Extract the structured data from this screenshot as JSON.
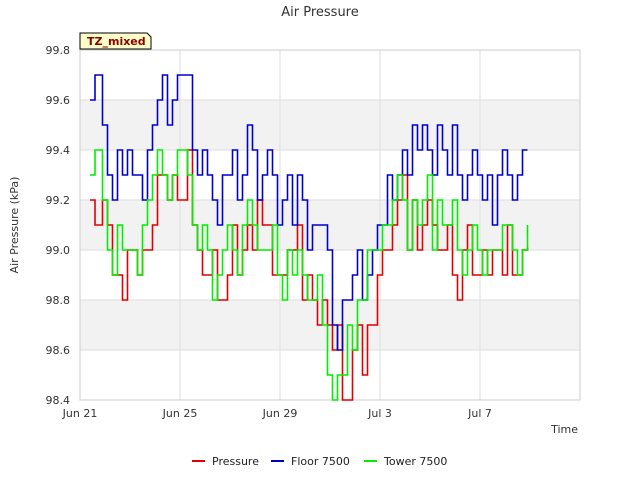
{
  "chart_data": {
    "type": "line",
    "title": "Air Pressure",
    "xlabel": "Time",
    "ylabel": "Air Pressure (kPa)",
    "badge": "TZ_mixed",
    "ylim": [
      98.4,
      99.8
    ],
    "yticks": [
      "98.4",
      "98.6",
      "98.8",
      "99.0",
      "99.2",
      "99.4",
      "99.6",
      "99.8"
    ],
    "xlim": [
      0,
      20
    ],
    "xticks": [
      {
        "label": "Jun 21",
        "day": 0
      },
      {
        "label": "Jun 25",
        "day": 4
      },
      {
        "label": "Jun 29",
        "day": 8
      },
      {
        "label": "Jul 3",
        "day": 12
      },
      {
        "label": "Jul 7",
        "day": 16
      }
    ],
    "grid": true,
    "legend_position": "bottom",
    "series": [
      {
        "name": "Pressure",
        "color": "#e00000",
        "x": [
          0.4,
          0.6,
          0.9,
          1.1,
          1.3,
          1.5,
          1.7,
          1.9,
          2.1,
          2.3,
          2.5,
          2.7,
          2.9,
          3.1,
          3.3,
          3.5,
          3.7,
          3.9,
          4.1,
          4.3,
          4.5,
          4.7,
          4.9,
          5.1,
          5.3,
          5.5,
          5.7,
          5.9,
          6.1,
          6.3,
          6.5,
          6.7,
          6.9,
          7.1,
          7.3,
          7.5,
          7.7,
          7.9,
          8.1,
          8.3,
          8.5,
          8.7,
          8.9,
          9.1,
          9.3,
          9.5,
          9.7,
          9.9,
          10.1,
          10.3,
          10.5,
          10.7,
          10.9,
          11.1,
          11.3,
          11.5,
          11.7,
          11.9,
          12.1,
          12.3,
          12.5,
          12.7,
          12.9,
          13.1,
          13.3,
          13.5,
          13.7,
          13.9,
          14.1,
          14.3,
          14.5,
          14.7,
          14.9,
          15.1,
          15.3,
          15.5,
          15.7,
          15.9,
          16.1,
          16.3,
          16.5,
          16.7,
          16.9,
          17.1,
          17.3,
          17.5,
          17.7,
          17.9
        ],
        "y": [
          99.2,
          99.1,
          99.2,
          99.1,
          98.9,
          98.9,
          98.8,
          99.0,
          99.0,
          98.9,
          99.0,
          99.0,
          99.1,
          99.3,
          99.3,
          99.2,
          99.3,
          99.2,
          99.2,
          99.4,
          99.1,
          99.0,
          98.9,
          98.9,
          99.0,
          98.8,
          98.8,
          98.9,
          99.1,
          98.9,
          99.0,
          99.1,
          99.0,
          99.2,
          99.1,
          99.1,
          98.9,
          98.9,
          98.9,
          99.0,
          99.0,
          99.1,
          98.8,
          98.9,
          98.8,
          98.7,
          98.8,
          98.7,
          98.6,
          98.7,
          98.4,
          98.4,
          98.6,
          98.7,
          98.5,
          98.7,
          98.7,
          98.9,
          99.0,
          99.0,
          99.1,
          99.2,
          99.3,
          99.0,
          99.2,
          99.0,
          99.1,
          99.2,
          99.1,
          99.0,
          99.0,
          99.1,
          98.9,
          98.8,
          99.0,
          99.1,
          98.9,
          98.9,
          99.0,
          98.9,
          99.0,
          99.0,
          98.9,
          99.1,
          98.9,
          98.9,
          99.0,
          99.01
        ]
      },
      {
        "name": "Floor 7500",
        "color": "#0000cc",
        "x": [
          0.4,
          0.6,
          0.9,
          1.1,
          1.3,
          1.5,
          1.7,
          1.9,
          2.1,
          2.3,
          2.5,
          2.7,
          2.9,
          3.1,
          3.3,
          3.5,
          3.7,
          3.9,
          4.1,
          4.3,
          4.5,
          4.7,
          4.9,
          5.1,
          5.3,
          5.5,
          5.7,
          5.9,
          6.1,
          6.3,
          6.5,
          6.7,
          6.9,
          7.1,
          7.3,
          7.5,
          7.7,
          7.9,
          8.1,
          8.3,
          8.5,
          8.7,
          8.9,
          9.1,
          9.3,
          9.5,
          9.7,
          9.9,
          10.1,
          10.3,
          10.5,
          10.7,
          10.9,
          11.1,
          11.3,
          11.5,
          11.7,
          11.9,
          12.1,
          12.3,
          12.5,
          12.7,
          12.9,
          13.1,
          13.3,
          13.5,
          13.7,
          13.9,
          14.1,
          14.3,
          14.5,
          14.7,
          14.9,
          15.1,
          15.3,
          15.5,
          15.7,
          15.9,
          16.1,
          16.3,
          16.5,
          16.7,
          16.9,
          17.1,
          17.3,
          17.5,
          17.7,
          17.9
        ],
        "y": [
          99.6,
          99.7,
          99.5,
          99.3,
          99.2,
          99.4,
          99.3,
          99.4,
          99.3,
          99.3,
          99.2,
          99.4,
          99.5,
          99.6,
          99.7,
          99.5,
          99.6,
          99.7,
          99.7,
          99.7,
          99.4,
          99.3,
          99.4,
          99.3,
          99.2,
          99.1,
          99.3,
          99.3,
          99.4,
          99.2,
          99.3,
          99.5,
          99.4,
          99.2,
          99.3,
          99.4,
          99.3,
          99.1,
          99.2,
          99.3,
          99.1,
          99.3,
          99.2,
          99.0,
          99.1,
          99.1,
          99.1,
          99.0,
          98.7,
          98.6,
          98.8,
          98.8,
          98.9,
          99.0,
          98.8,
          98.9,
          99.0,
          99.1,
          99.1,
          99.3,
          99.2,
          99.3,
          99.4,
          99.3,
          99.5,
          99.4,
          99.5,
          99.4,
          99.3,
          99.5,
          99.4,
          99.3,
          99.5,
          99.3,
          99.2,
          99.3,
          99.4,
          99.3,
          99.2,
          99.3,
          99.1,
          99.3,
          99.4,
          99.3,
          99.2,
          99.3,
          99.4,
          99.4
        ]
      },
      {
        "name": "Tower 7500",
        "color": "#00ee00",
        "x": [
          0.4,
          0.6,
          0.9,
          1.1,
          1.3,
          1.5,
          1.7,
          1.9,
          2.1,
          2.3,
          2.5,
          2.7,
          2.9,
          3.1,
          3.3,
          3.5,
          3.7,
          3.9,
          4.1,
          4.3,
          4.5,
          4.7,
          4.9,
          5.1,
          5.3,
          5.5,
          5.7,
          5.9,
          6.1,
          6.3,
          6.5,
          6.7,
          6.9,
          7.1,
          7.3,
          7.5,
          7.7,
          7.9,
          8.1,
          8.3,
          8.5,
          8.7,
          8.9,
          9.1,
          9.3,
          9.5,
          9.7,
          9.9,
          10.1,
          10.3,
          10.5,
          10.7,
          10.9,
          11.1,
          11.3,
          11.5,
          11.7,
          11.9,
          12.1,
          12.3,
          12.5,
          12.7,
          12.9,
          13.1,
          13.3,
          13.5,
          13.7,
          13.9,
          14.1,
          14.3,
          14.5,
          14.7,
          14.9,
          15.1,
          15.3,
          15.5,
          15.7,
          15.9,
          16.1,
          16.3,
          16.5,
          16.7,
          16.9,
          17.1,
          17.3,
          17.5,
          17.7,
          17.9
        ],
        "y": [
          99.3,
          99.4,
          99.2,
          99.0,
          98.9,
          99.1,
          99.0,
          99.0,
          99.0,
          98.9,
          99.1,
          99.2,
          99.3,
          99.4,
          99.3,
          99.2,
          99.3,
          99.4,
          99.4,
          99.3,
          99.1,
          99.0,
          99.1,
          99.0,
          98.8,
          98.9,
          99.0,
          99.1,
          99.0,
          98.9,
          99.1,
          99.2,
          99.1,
          99.0,
          99.0,
          99.0,
          99.1,
          98.9,
          98.8,
          99.0,
          98.9,
          99.0,
          98.9,
          98.8,
          98.8,
          98.9,
          98.7,
          98.5,
          98.4,
          98.5,
          98.5,
          98.7,
          98.6,
          98.8,
          98.8,
          99.0,
          99.0,
          99.0,
          99.1,
          99.1,
          99.2,
          99.3,
          99.2,
          99.0,
          99.2,
          99.1,
          99.2,
          99.3,
          99.0,
          99.2,
          99.1,
          99.1,
          99.2,
          99.0,
          98.9,
          99.0,
          99.1,
          99.0,
          98.9,
          99.0,
          99.0,
          99.0,
          99.1,
          99.1,
          99.0,
          98.9,
          99.0,
          99.1
        ]
      }
    ]
  }
}
